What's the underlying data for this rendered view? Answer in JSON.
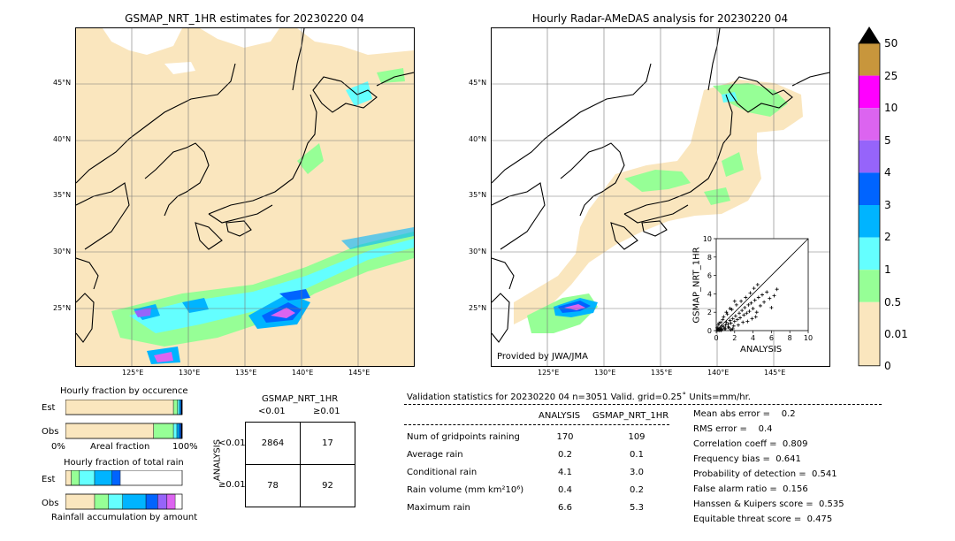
{
  "left_map": {
    "title": "GSMAP_NRT_1HR estimates for 20230220 04",
    "lat_labels": [
      "45°N",
      "40°N",
      "35°N",
      "30°N",
      "25°N"
    ],
    "lon_labels": [
      "125°E",
      "130°E",
      "135°E",
      "140°E",
      "145°E"
    ]
  },
  "right_map": {
    "title": "Hourly Radar-AMeDAS analysis for 20230220 04",
    "lat_labels": [
      "45°N",
      "40°N",
      "35°N",
      "30°N",
      "25°N"
    ],
    "lon_labels": [
      "125°E",
      "130°E",
      "135°E",
      "140°E",
      "145°E"
    ],
    "credit": "Provided by JWA/JMA"
  },
  "colorbar": {
    "labels": [
      "50",
      "25",
      "10",
      "5",
      "4",
      "3",
      "2",
      "1",
      "0.5",
      "0.01",
      "0"
    ],
    "colors": [
      "#c8963c",
      "#ff00ff",
      "#dc64f0",
      "#9664fa",
      "#0064ff",
      "#00b4ff",
      "#64ffff",
      "#96ff96",
      "#fae6be"
    ]
  },
  "chart_data": [
    {
      "type": "scatter",
      "xlabel": "ANALYSIS",
      "ylabel": "GSMAP_NRT_1HR",
      "xlim": [
        0,
        10
      ],
      "ylim": [
        0,
        10
      ],
      "xticks": [
        "0",
        "2",
        "4",
        "6",
        "8",
        "10"
      ],
      "yticks": [
        "0",
        "2",
        "4",
        "6",
        "8",
        "10"
      ],
      "points": [
        [
          0.2,
          0.1
        ],
        [
          0.4,
          0.3
        ],
        [
          0.5,
          0.2
        ],
        [
          0.6,
          0.5
        ],
        [
          0.8,
          0.4
        ],
        [
          1.0,
          0.6
        ],
        [
          1.1,
          0.9
        ],
        [
          1.3,
          0.7
        ],
        [
          1.5,
          1.1
        ],
        [
          1.6,
          0.8
        ],
        [
          1.8,
          1.3
        ],
        [
          2.0,
          1.0
        ],
        [
          2.1,
          1.6
        ],
        [
          2.3,
          1.2
        ],
        [
          2.5,
          1.9
        ],
        [
          2.6,
          1.4
        ],
        [
          2.8,
          2.2
        ],
        [
          3.0,
          1.7
        ],
        [
          3.1,
          2.5
        ],
        [
          3.3,
          1.9
        ],
        [
          3.5,
          2.8
        ],
        [
          3.6,
          2.1
        ],
        [
          3.8,
          3.0
        ],
        [
          4.0,
          2.4
        ],
        [
          4.2,
          3.3
        ],
        [
          4.4,
          2.0
        ],
        [
          4.6,
          3.6
        ],
        [
          4.8,
          2.7
        ],
        [
          5.0,
          3.9
        ],
        [
          5.2,
          3.1
        ],
        [
          5.5,
          4.2
        ],
        [
          5.8,
          3.5
        ],
        [
          6.0,
          2.5
        ],
        [
          6.3,
          3.8
        ],
        [
          6.6,
          4.5
        ],
        [
          0.3,
          0.8
        ],
        [
          0.7,
          1.2
        ],
        [
          0.9,
          0.2
        ],
        [
          1.2,
          1.8
        ],
        [
          1.4,
          0.3
        ],
        [
          1.7,
          2.3
        ],
        [
          1.9,
          0.5
        ],
        [
          2.2,
          2.8
        ],
        [
          2.4,
          0.6
        ],
        [
          2.7,
          3.2
        ],
        [
          2.9,
          0.9
        ],
        [
          3.2,
          3.6
        ],
        [
          3.4,
          1.0
        ],
        [
          3.7,
          4.1
        ],
        [
          3.9,
          1.3
        ],
        [
          4.1,
          4.6
        ],
        [
          4.3,
          1.5
        ],
        [
          4.5,
          5.0
        ],
        [
          0.1,
          0.3
        ],
        [
          0.2,
          0.6
        ],
        [
          0.5,
          0.9
        ],
        [
          0.6,
          0.1
        ],
        [
          0.8,
          1.5
        ],
        [
          1.0,
          0.2
        ],
        [
          1.1,
          2.0
        ],
        [
          1.3,
          0.4
        ],
        [
          1.5,
          2.4
        ],
        [
          1.6,
          0.1
        ],
        [
          1.8,
          0.2
        ],
        [
          2.0,
          3.2
        ],
        [
          0.1,
          0.0
        ],
        [
          0.3,
          0.0
        ],
        [
          0.4,
          0.1
        ],
        [
          0.2,
          0.2
        ],
        [
          0.5,
          0.0
        ]
      ]
    },
    {
      "type": "bar",
      "title": "Hourly fraction by occurence",
      "categories": [
        "Est",
        "Obs"
      ],
      "xlabel": "Areal fraction",
      "xticks": [
        "0%",
        "100%"
      ],
      "series": [
        {
          "values": [
            0.925,
            0.755
          ],
          "color": "#fae6be"
        },
        {
          "values": [
            0.035,
            0.17
          ],
          "color": "#96ff96"
        },
        {
          "values": [
            0.015,
            0.03
          ],
          "color": "#64ffff"
        },
        {
          "values": [
            0.012,
            0.02
          ],
          "color": "#00b4ff"
        },
        {
          "values": [
            0.008,
            0.015
          ],
          "color": "#0064ff"
        },
        {
          "values": [
            0.005,
            0.01
          ],
          "color": "#000000"
        }
      ]
    },
    {
      "type": "bar",
      "title": "Hourly fraction of total rain",
      "categories": [
        "Est",
        "Obs"
      ],
      "xlabel": "Rainfall accumulation by amount",
      "series": [
        {
          "values": [
            0.05,
            0.25
          ],
          "color": "#fae6be"
        },
        {
          "values": [
            0.07,
            0.12
          ],
          "color": "#96ff96"
        },
        {
          "values": [
            0.13,
            0.12
          ],
          "color": "#64ffff"
        },
        {
          "values": [
            0.15,
            0.2
          ],
          "color": "#00b4ff"
        },
        {
          "values": [
            0.07,
            0.1
          ],
          "color": "#0064ff"
        },
        {
          "values": [
            0.0,
            0.08
          ],
          "color": "#9664fa"
        },
        {
          "values": [
            0.0,
            0.07
          ],
          "color": "#dc64f0"
        }
      ]
    }
  ],
  "contingency": {
    "title": "GSMAP_NRT_1HR",
    "col_lt": "<0.01",
    "col_ge": "≥0.01",
    "row_axis": "ANALYSIS",
    "row_lt": "<0.01",
    "row_ge": "≥0.01",
    "cells": [
      "2864",
      "17",
      "78",
      "92"
    ]
  },
  "validation": {
    "header": "Validation statistics for 20230220 04  n=3051 Valid. grid=0.25˚ Units=mm/hr.",
    "col_analysis": "ANALYSIS",
    "col_gsmap": "GSMAP_NRT_1HR",
    "rows": [
      {
        "label": "Num of gridpoints raining",
        "a": "170",
        "g": "109"
      },
      {
        "label": "Average rain",
        "a": "0.2",
        "g": "0.1"
      },
      {
        "label": "Conditional rain",
        "a": "4.1",
        "g": "3.0"
      },
      {
        "label": "Rain volume (mm km²10⁶)",
        "a": "0.4",
        "g": "0.2"
      },
      {
        "label": "Maximum rain",
        "a": "6.6",
        "g": "5.3"
      }
    ],
    "scores": [
      "Mean abs error =    0.2",
      "RMS error =    0.4",
      "Correlation coeff =  0.809",
      "Frequency bias =  0.641",
      "Probability of detection =  0.541",
      "False alarm ratio =  0.156",
      "Hanssen & Kuipers score =  0.535",
      "Equitable threat score =  0.475"
    ]
  }
}
